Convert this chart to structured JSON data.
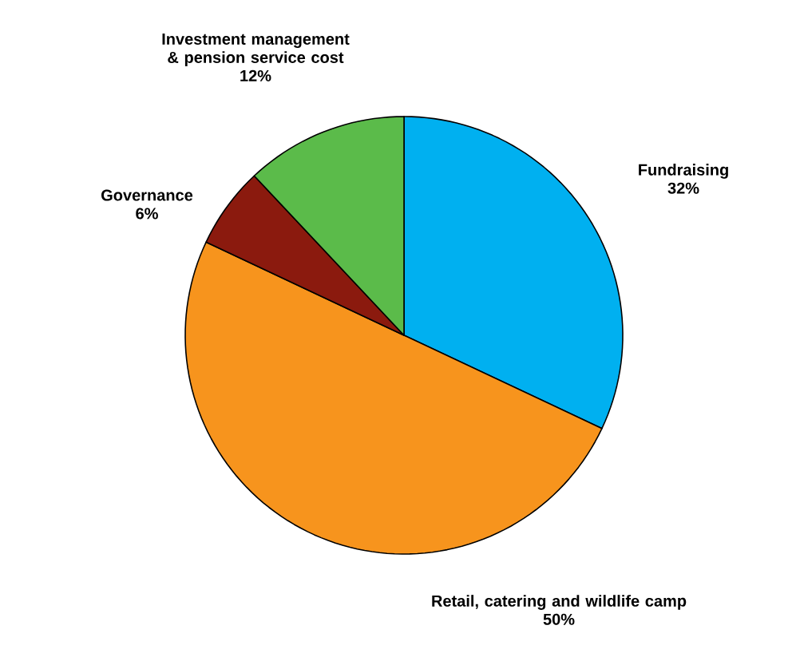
{
  "chart_data": {
    "type": "pie",
    "categories": [
      "Fundraising",
      "Retail, catering and wildlife camp",
      "Governance",
      "Investment management & pension service cost"
    ],
    "values": [
      32,
      50,
      6,
      12
    ],
    "value_labels": [
      "32%",
      "50%",
      "6%",
      "12%"
    ],
    "colors": [
      "#00b0f0",
      "#f7941d",
      "#8b1a0e",
      "#5bbb4a"
    ]
  }
}
